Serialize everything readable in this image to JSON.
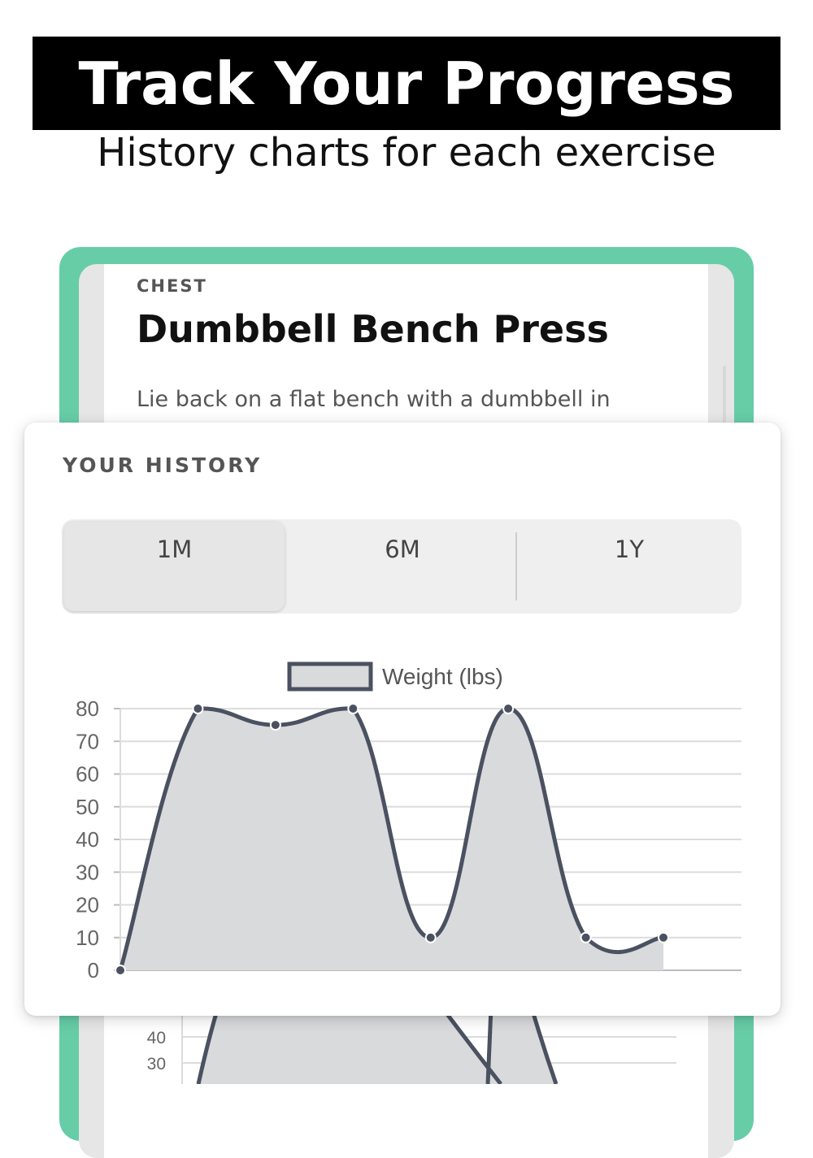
{
  "promo": {
    "title": "Track Your Progress",
    "subtitle": "History charts for each exercise"
  },
  "exercise": {
    "category": "CHEST",
    "name": "Dumbbell Bench Press",
    "description": "Lie back on a flat bench with a dumbbell in"
  },
  "history": {
    "label": "YOUR HISTORY",
    "ranges": [
      "1M",
      "6M",
      "1Y"
    ],
    "selected": "1M"
  },
  "colors": {
    "brand_green": "#66cda7",
    "line": "#4a5160",
    "fill": "#d9dadc"
  },
  "chart_data": {
    "type": "line",
    "x": [
      0,
      1,
      2,
      3,
      4,
      5,
      6,
      7
    ],
    "series": [
      {
        "name": "Weight (lbs)",
        "values": [
          0,
          80,
          75,
          80,
          10,
          80,
          10,
          10
        ]
      }
    ],
    "yticks": [
      0,
      10,
      20,
      30,
      40,
      50,
      60,
      70,
      80
    ],
    "ylim": [
      0,
      80
    ],
    "grid": true,
    "legend": "top-center",
    "fill": true
  },
  "background_chart": {
    "yticks": [
      30,
      40
    ]
  }
}
